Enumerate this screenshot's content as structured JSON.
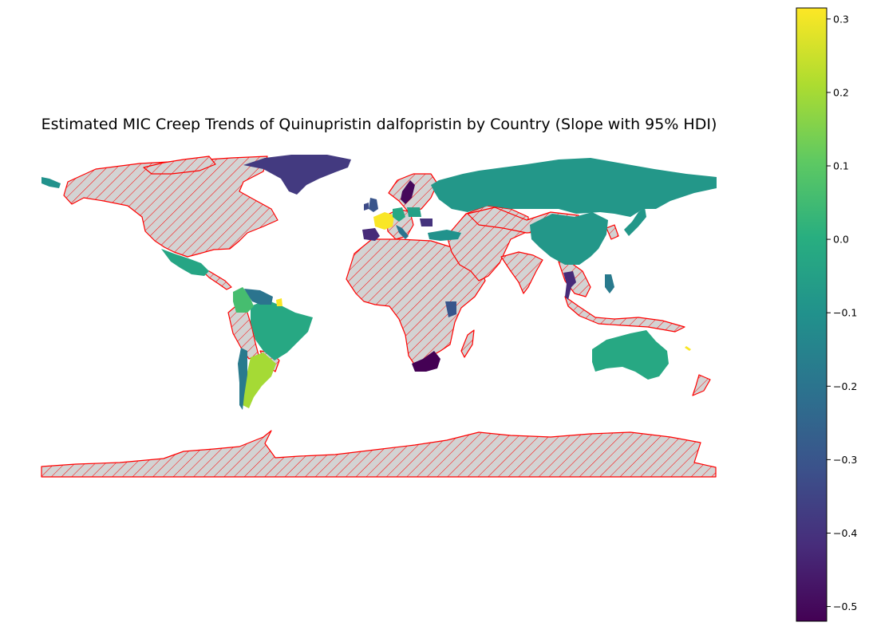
{
  "title": "Estimated MIC Creep Trends of Quinupristin dalfopristin by Country (Slope with 95% HDI)",
  "colorbar": {
    "colormap": "viridis",
    "vmin": -0.52,
    "vmax": 0.315,
    "ticks": [
      {
        "value": 0.3,
        "label": "0.3"
      },
      {
        "value": 0.2,
        "label": "0.2"
      },
      {
        "value": 0.1,
        "label": "0.1"
      },
      {
        "value": 0.0,
        "label": "0.0"
      },
      {
        "value": -0.1,
        "label": "−0.1"
      },
      {
        "value": -0.2,
        "label": "−0.2"
      },
      {
        "value": -0.3,
        "label": "−0.3"
      },
      {
        "value": -0.4,
        "label": "−0.4"
      },
      {
        "value": -0.5,
        "label": "−0.5"
      }
    ]
  },
  "no_data_style": {
    "fill": "#d3d3d3",
    "edge": "#ff0000",
    "hatch": "///"
  },
  "countries_with_data": [
    {
      "country": "Greenland",
      "slope": -0.38
    },
    {
      "country": "Russia",
      "slope": -0.08
    },
    {
      "country": "China",
      "slope": -0.08
    },
    {
      "country": "Mexico",
      "slope": -0.03
    },
    {
      "country": "Brazil",
      "slope": -0.02
    },
    {
      "country": "Colombia",
      "slope": 0.06
    },
    {
      "country": "Venezuela",
      "slope": -0.2
    },
    {
      "country": "French Guiana",
      "slope": 0.31
    },
    {
      "country": "Argentina",
      "slope": 0.2
    },
    {
      "country": "Chile",
      "slope": -0.18
    },
    {
      "country": "France",
      "slope": 0.31
    },
    {
      "country": "Spain",
      "slope": -0.42
    },
    {
      "country": "Ireland",
      "slope": -0.33
    },
    {
      "country": "United Kingdom",
      "slope": -0.3
    },
    {
      "country": "Germany",
      "slope": -0.02
    },
    {
      "country": "Sweden",
      "slope": -0.5
    },
    {
      "country": "Italy",
      "slope": -0.2
    },
    {
      "country": "Poland",
      "slope": -0.05
    },
    {
      "country": "Romania",
      "slope": -0.4
    },
    {
      "country": "Turkey",
      "slope": -0.1
    },
    {
      "country": "Kenya",
      "slope": -0.3
    },
    {
      "country": "South Africa",
      "slope": -0.52
    },
    {
      "country": "Thailand",
      "slope": -0.42
    },
    {
      "country": "Philippines",
      "slope": -0.18
    },
    {
      "country": "Japan",
      "slope": -0.08
    },
    {
      "country": "Australia",
      "slope": -0.02
    },
    {
      "country": "New Caledonia",
      "slope": 0.31
    },
    {
      "country": "Alaska",
      "slope": -0.1
    }
  ]
}
